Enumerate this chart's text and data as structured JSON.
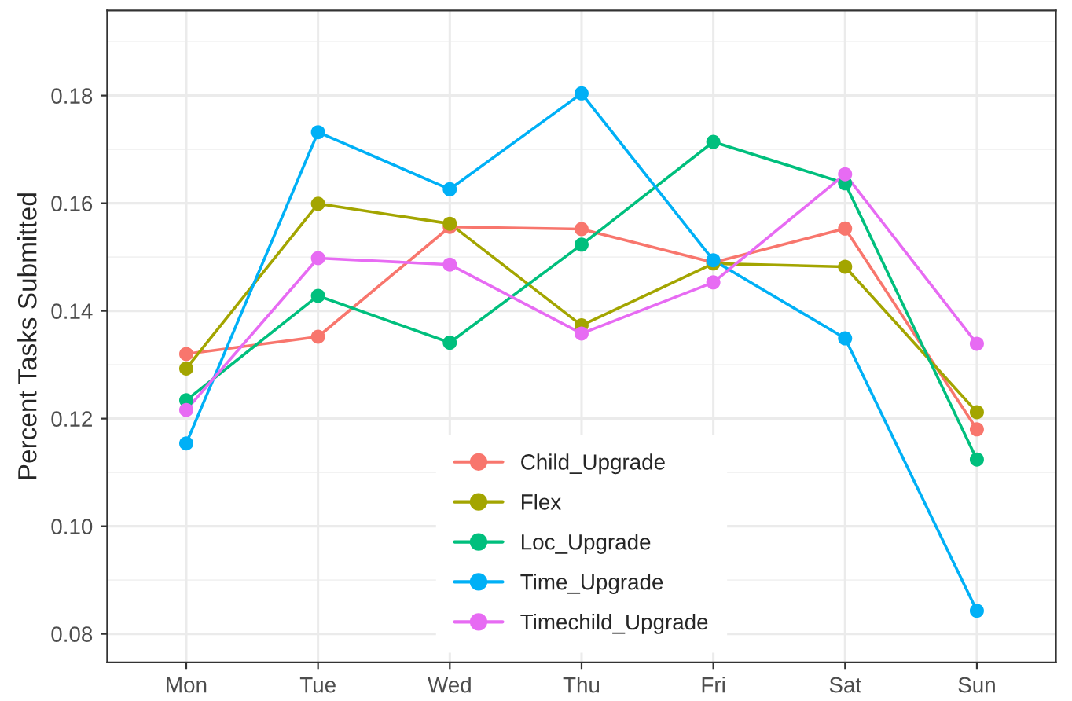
{
  "chart_data": {
    "type": "line",
    "ylabel": "Percent Tasks Submitted",
    "categories": [
      "Mon",
      "Tue",
      "Wed",
      "Thu",
      "Fri",
      "Sat",
      "Sun"
    ],
    "series": [
      {
        "name": "Child_Upgrade",
        "color": "#f8766d",
        "values": [
          0.132,
          0.1352,
          0.1556,
          0.1552,
          0.149,
          0.1553,
          0.118
        ]
      },
      {
        "name": "Flex",
        "color": "#a3a500",
        "values": [
          0.1293,
          0.1599,
          0.1562,
          0.1373,
          0.1488,
          0.1482,
          0.1212
        ]
      },
      {
        "name": "Loc_Upgrade",
        "color": "#00bf7d",
        "values": [
          0.1234,
          0.1428,
          0.1341,
          0.1523,
          0.1714,
          0.1637,
          0.1124
        ]
      },
      {
        "name": "Time_Upgrade",
        "color": "#00b0f6",
        "values": [
          0.1154,
          0.1732,
          0.1626,
          0.1804,
          0.1494,
          0.1349,
          0.0843
        ]
      },
      {
        "name": "Timechild_Upgrade",
        "color": "#e76bf3",
        "values": [
          0.1216,
          0.1498,
          0.1486,
          0.1358,
          0.1453,
          0.1654,
          0.1339
        ]
      }
    ],
    "ylim": [
      0.0747,
      0.1958
    ],
    "yticks": [
      {
        "value": 0.08,
        "label": "0.08"
      },
      {
        "value": 0.1,
        "label": "0.10"
      },
      {
        "value": 0.12,
        "label": "0.12"
      },
      {
        "value": 0.14,
        "label": "0.14"
      },
      {
        "value": 0.16,
        "label": "0.16"
      },
      {
        "value": 0.18,
        "label": "0.18"
      }
    ],
    "grid": true,
    "legend": "bottom",
    "marker": "circle",
    "line_style": "solid"
  }
}
